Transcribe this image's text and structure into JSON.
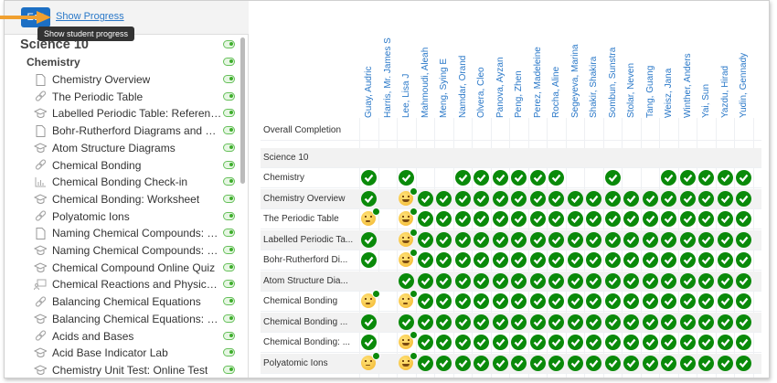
{
  "toolbar": {
    "edit_label": "Edit",
    "show_progress_label": "Show Progress",
    "tooltip": "Show student progress"
  },
  "colors": {
    "accent": "#1c6fc4",
    "link": "#2a78c8",
    "complete": "#0a8a0a",
    "toggle_on": "#3fae2c",
    "arrow": "#f0a030"
  },
  "sidebar": {
    "course": "Science 10",
    "unit": "Chemistry",
    "items": [
      {
        "label": "Chemistry Overview",
        "icon": "page"
      },
      {
        "label": "The Periodic Table",
        "icon": "link"
      },
      {
        "label": "Labelled Periodic Table: Reference ...",
        "icon": "mortarboard"
      },
      {
        "label": "Bohr-Rutherford Diagrams and Le...",
        "icon": "page"
      },
      {
        "label": "Atom Structure Diagrams",
        "icon": "mortarboard"
      },
      {
        "label": "Chemical Bonding",
        "icon": "link"
      },
      {
        "label": "Chemical Bonding Check-in",
        "icon": "chart"
      },
      {
        "label": "Chemical Bonding: Worksheet",
        "icon": "mortarboard"
      },
      {
        "label": "Polyatomic Ions",
        "icon": "link"
      },
      {
        "label": "Naming Chemical Compounds: Ref...",
        "icon": "page"
      },
      {
        "label": "Naming Chemical Compounds: Wo...",
        "icon": "mortarboard"
      },
      {
        "label": "Chemical Compound Online Quiz",
        "icon": "mortarboard"
      },
      {
        "label": "Chemical Reactions and Physical C...",
        "icon": "presentation"
      },
      {
        "label": "Balancing Chemical Equations",
        "icon": "link"
      },
      {
        "label": "Balancing Chemical Equations: Wor...",
        "icon": "mortarboard"
      },
      {
        "label": "Acids and Bases",
        "icon": "link"
      },
      {
        "label": "Acid Base Indicator Lab",
        "icon": "mortarboard"
      },
      {
        "label": "Chemistry Unit Test: Online Test",
        "icon": "mortarboard"
      }
    ]
  },
  "grid": {
    "students": [
      "Guay, Audric",
      "Harris, Mr. James S",
      "Lee, Lisa J",
      "Mahmoudi, Aleah",
      "Meng, Sying E",
      "Namdar, Orand",
      "Olvera, Cleo",
      "Panova, Ayzan",
      "Peng, Zhen",
      "Perez, Madeleine",
      "Rocha, Aline",
      "Segeyeva, Marina",
      "Shakir, Shakira",
      "Sombun, Sunstra",
      "Stolar, Neven",
      "Tang, Guang",
      "Weisz, Jana",
      "Winther, Anders",
      "Yai, Sun",
      "Yazdu, Hirad",
      "Yudin, Gennady"
    ],
    "overall_label": "Overall Completion",
    "course_label": "Science 10",
    "legend": {
      "c": "complete",
      "grin": "complete-happy",
      "sleepy": "complete-sleepy",
      "confused": "complete-confused",
      "": "not-complete"
    },
    "rows": [
      {
        "name": "Chemistry",
        "cells": [
          "c",
          "",
          "c",
          "",
          "",
          "c",
          "c",
          "c",
          "c",
          "c",
          "c",
          "",
          "",
          "c",
          "",
          "",
          "c",
          "c",
          "c",
          "c",
          "c"
        ]
      },
      {
        "name": "Chemistry Overview",
        "cells": [
          "c",
          "",
          "grin",
          "c",
          "c",
          "c",
          "c",
          "c",
          "c",
          "c",
          "c",
          "c",
          "c",
          "c",
          "c",
          "c",
          "c",
          "c",
          "c",
          "c",
          "c"
        ]
      },
      {
        "name": "The Periodic Table",
        "cells": [
          "sleepy",
          "",
          "grin",
          "c",
          "c",
          "c",
          "c",
          "c",
          "c",
          "c",
          "c",
          "c",
          "c",
          "c",
          "c",
          "c",
          "c",
          "c",
          "c",
          "c",
          "c"
        ]
      },
      {
        "name": "Labelled Periodic Ta...",
        "cells": [
          "c",
          "",
          "grin",
          "c",
          "c",
          "c",
          "c",
          "c",
          "c",
          "c",
          "c",
          "c",
          "c",
          "c",
          "c",
          "c",
          "c",
          "c",
          "c",
          "c",
          "c"
        ]
      },
      {
        "name": "Bohr-Rutherford Di...",
        "cells": [
          "c",
          "",
          "grin",
          "c",
          "c",
          "c",
          "c",
          "c",
          "c",
          "c",
          "c",
          "c",
          "c",
          "c",
          "c",
          "c",
          "c",
          "c",
          "c",
          "c",
          "c"
        ]
      },
      {
        "name": "Atom Structure Dia...",
        "cells": [
          "",
          "",
          "c",
          "c",
          "c",
          "c",
          "c",
          "c",
          "c",
          "c",
          "c",
          "c",
          "c",
          "c",
          "c",
          "c",
          "c",
          "c",
          "c",
          "c",
          "c"
        ]
      },
      {
        "name": "Chemical Bonding",
        "cells": [
          "confused",
          "",
          "sleepy",
          "c",
          "c",
          "c",
          "c",
          "c",
          "c",
          "c",
          "c",
          "c",
          "c",
          "c",
          "c",
          "c",
          "c",
          "c",
          "c",
          "c",
          "c"
        ]
      },
      {
        "name": "Chemical Bonding ...",
        "cells": [
          "c",
          "",
          "c",
          "c",
          "c",
          "c",
          "c",
          "c",
          "c",
          "c",
          "c",
          "c",
          "c",
          "c",
          "c",
          "c",
          "c",
          "c",
          "c",
          "c",
          "c"
        ]
      },
      {
        "name": "Chemical Bonding: ...",
        "cells": [
          "c",
          "",
          "grin",
          "c",
          "c",
          "c",
          "c",
          "c",
          "c",
          "c",
          "c",
          "c",
          "c",
          "c",
          "c",
          "c",
          "c",
          "c",
          "c",
          "c",
          "c"
        ]
      },
      {
        "name": "Polyatomic Ions",
        "cells": [
          "confused",
          "",
          "grin",
          "c",
          "c",
          "c",
          "c",
          "c",
          "c",
          "c",
          "c",
          "c",
          "c",
          "c",
          "c",
          "c",
          "c",
          "c",
          "c",
          "c",
          "c"
        ]
      }
    ]
  }
}
